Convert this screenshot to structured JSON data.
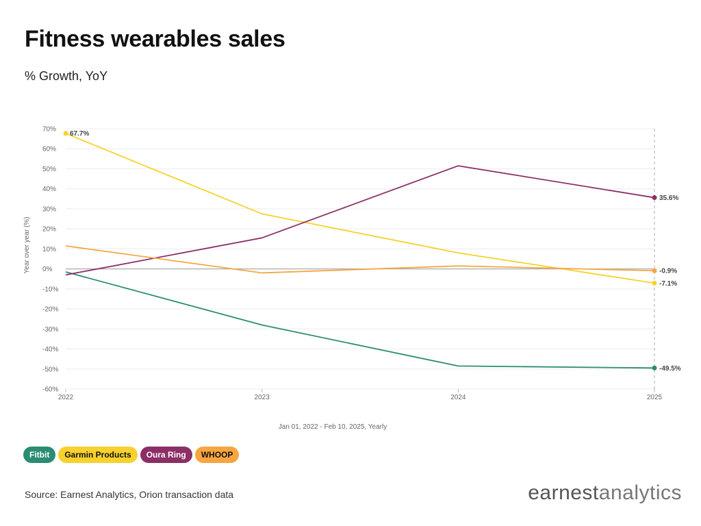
{
  "title": "Fitness wearables sales",
  "subtitle": "% Growth, YoY",
  "source": "Source: Earnest Analytics, Orion transaction data",
  "logo": {
    "part1": "earnest",
    "part2": "analytics"
  },
  "colors": {
    "Fitbit": "#2a8c73",
    "Garmin Products": "#f7d12e",
    "Oura Ring": "#8c2f66",
    "WHOOP": "#f7a540",
    "grid": "#ececec",
    "zero": "#aaaaaa"
  },
  "chart_data": {
    "type": "line",
    "title": "Fitness wearables sales",
    "subtitle": "% Growth, YoY",
    "xlabel": "Jan 01, 2022 - Feb 10, 2025, Yearly",
    "ylabel": "Year over year (%)",
    "x": [
      "2022",
      "2023",
      "2024",
      "2025"
    ],
    "ylim": [
      -60,
      70
    ],
    "yticks": [
      70,
      60,
      50,
      40,
      30,
      20,
      10,
      0,
      -10,
      -20,
      -30,
      -40,
      -50,
      -60
    ],
    "ytick_labels": [
      "70%",
      "60%",
      "50%",
      "40%",
      "30%",
      "20%",
      "10%",
      "0%",
      "-10%",
      "-20%",
      "-30%",
      "-40%",
      "-50%",
      "-60%"
    ],
    "grid": true,
    "legend": "bottom-left",
    "series": [
      {
        "name": "Fitbit",
        "values": [
          -1.5,
          -28,
          -48.5,
          -49.5
        ],
        "end_label": "-49.5%"
      },
      {
        "name": "Garmin Products",
        "values": [
          67.7,
          27.5,
          8,
          -7.1
        ],
        "start_label": "67.7%",
        "end_label": "-7.1%"
      },
      {
        "name": "Oura Ring",
        "values": [
          -3,
          15.5,
          51.5,
          35.6
        ],
        "end_label": "35.6%"
      },
      {
        "name": "WHOOP",
        "values": [
          11.5,
          -2,
          1.5,
          -0.9
        ],
        "end_label": "-0.9%"
      }
    ]
  }
}
